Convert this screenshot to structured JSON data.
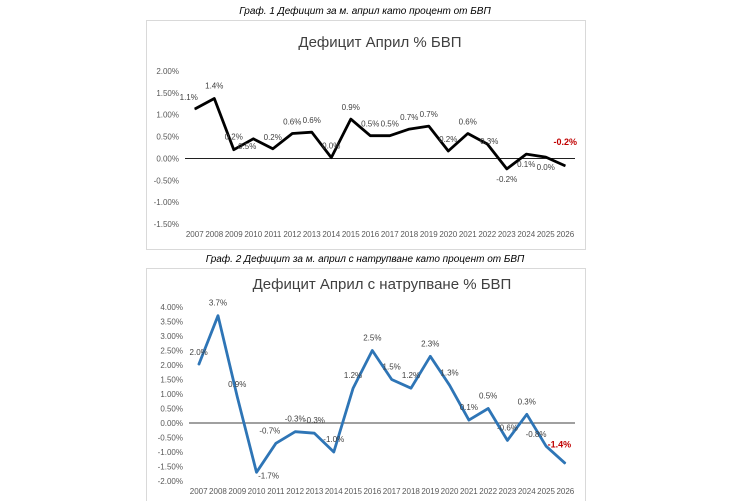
{
  "captions": {
    "chart1": "Граф. 1 Дефицит за м. април като процент от БВП",
    "chart2": "Граф. 2 Дефицит за м. април с натрупване като процент от БВП"
  },
  "chart_data": [
    {
      "type": "line",
      "title": "Дефицит Април % БВП",
      "xlabel": "",
      "ylabel": "",
      "categories": [
        "2007",
        "2008",
        "2009",
        "2010",
        "2011",
        "2012",
        "2013",
        "2014",
        "2015",
        "2016",
        "2017",
        "2018",
        "2019",
        "2020",
        "2021",
        "2022",
        "2023",
        "2024",
        "2025",
        "2026"
      ],
      "series": [
        {
          "values": [
            1.13,
            1.37,
            0.2,
            0.45,
            0.22,
            0.57,
            0.6,
            0.02,
            0.9,
            0.52,
            0.52,
            0.67,
            0.74,
            0.17,
            0.57,
            0.33,
            -0.24,
            0.1,
            0.03,
            -0.17
          ]
        }
      ],
      "data_labels": [
        "1.1%",
        "1.4%",
        "0.2%",
        "0.5%",
        "0.2%",
        "0.6%",
        "0.6%",
        "0.0%",
        "0.9%",
        "0.5%",
        "0.5%",
        "0.7%",
        "0.7%",
        "0.2%",
        "0.6%",
        "0.3%",
        "-0.2%",
        "0.1%",
        "0.0%",
        "-0.2%"
      ],
      "yticks": [
        "-1.50%",
        "-1.00%",
        "-0.50%",
        "0.00%",
        "0.50%",
        "1.00%",
        "1.50%",
        "2.00%"
      ],
      "ylim": [
        -1.5,
        2.0
      ],
      "line_color": "#000000",
      "highlight_color": "#c00000",
      "grid": false
    },
    {
      "type": "line",
      "title": "Дефицит Април с натрупване % БВП",
      "xlabel": "",
      "ylabel": "",
      "categories": [
        "2007",
        "2008",
        "2009",
        "2010",
        "2011",
        "2012",
        "2013",
        "2014",
        "2015",
        "2016",
        "2017",
        "2018",
        "2019",
        "2020",
        "2021",
        "2022",
        "2023",
        "2024",
        "2025",
        "2026"
      ],
      "series": [
        {
          "values": [
            2.0,
            3.7,
            0.9,
            -1.7,
            -0.7,
            -0.3,
            -0.35,
            -1.0,
            1.2,
            2.5,
            1.5,
            1.2,
            2.3,
            1.3,
            0.1,
            0.5,
            -0.6,
            0.3,
            -0.8,
            -1.4
          ]
        }
      ],
      "data_labels": [
        "2.0%",
        "3.7%",
        "0.9%",
        "-1.7%",
        "-0.7%",
        "-0.3%",
        "-0.3%",
        "-1.0%",
        "1.2%",
        "2.5%",
        "1.5%",
        "1.2%",
        "2.3%",
        "1.3%",
        "0.1%",
        "0.5%",
        "-0.6%",
        "0.3%",
        "-0.8%",
        "-1.4%"
      ],
      "yticks": [
        "-2.00%",
        "-1.50%",
        "-1.00%",
        "-0.50%",
        "0.00%",
        "0.50%",
        "1.00%",
        "1.50%",
        "2.00%",
        "2.50%",
        "3.00%",
        "3.50%",
        "4.00%"
      ],
      "ylim": [
        -2.0,
        4.0
      ],
      "line_color": "#2e75b6",
      "highlight_color": "#c00000",
      "grid": false
    }
  ]
}
